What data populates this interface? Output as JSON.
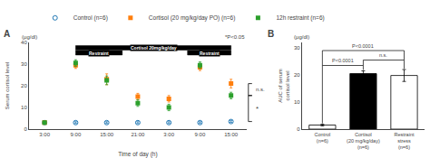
{
  "chart_data": [
    {
      "type": "scatter",
      "title": "A",
      "xlabel": "Time of day (h)",
      "ylabel": "Serum cortisol level",
      "yunits": "(μg/dl)",
      "categories": [
        "3:00",
        "9:00",
        "15:00",
        "21:00",
        "3:00",
        "9:00",
        "15:00"
      ],
      "series": [
        {
          "name": "Control (n=6)",
          "marker": "circle-open",
          "values": [
            3.0,
            3.0,
            3.0,
            3.0,
            3.0,
            3.0,
            3.5
          ],
          "errors": [
            0.4,
            0.4,
            0.4,
            0.4,
            0.4,
            0.4,
            0.4
          ]
        },
        {
          "name": "Cortisol (20 mg/kg/day PO) (n=6)",
          "marker": "square",
          "values": [
            3.0,
            29.5,
            23.0,
            15.0,
            14.0,
            28.5,
            21.0
          ],
          "errors": [
            0.4,
            1.5,
            2.5,
            1.5,
            1.5,
            1.5,
            2.0
          ]
        },
        {
          "name": "12h restraint (n=6)",
          "marker": "square",
          "values": [
            3.0,
            30.5,
            22.5,
            12.0,
            10.0,
            29.5,
            15.5
          ],
          "errors": [
            0.4,
            1.5,
            2.0,
            1.5,
            1.5,
            1.5,
            1.5
          ]
        }
      ],
      "ylim": [
        0,
        40
      ],
      "yticks": [
        0,
        10,
        20,
        30,
        40
      ],
      "grid": false,
      "legend": "top",
      "annotations": [
        {
          "text": "*P<0.05"
        },
        {
          "text": "Cortisol 20mg/kg/day",
          "x": [
            1,
            6
          ],
          "y": [
            36.5,
            38.5
          ]
        },
        {
          "text": "Restraint",
          "x": [
            1,
            2.5
          ],
          "y": [
            34.2,
            36.2
          ]
        },
        {
          "text": "Restraint",
          "x": [
            4.6,
            6
          ],
          "y": [
            34.2,
            36.2
          ]
        },
        {
          "text": "n.s.",
          "y": [
            15.5,
            21.0
          ]
        },
        {
          "text": "*",
          "y": [
            3.5,
            15.5
          ]
        }
      ]
    },
    {
      "type": "bar",
      "title": "B",
      "ylabel": "AUC of serum\ncortisol level",
      "yunits": "(μg/dl)",
      "categories": [
        "Control\n(n=6)",
        "Cortisol\n(20 mg/kg/day)\n(n=6)",
        "Restraint\nstress\n(n=6)"
      ],
      "values": [
        1.5,
        20.5,
        19.8
      ],
      "errors": [
        0.3,
        1.0,
        2.2
      ],
      "colors": [
        "white",
        "black",
        "white"
      ],
      "ylim": [
        0,
        32
      ],
      "yticks": [
        0,
        10,
        20,
        30
      ],
      "grid": false,
      "annotations": [
        {
          "text": "P<0.0001",
          "x": [
            0,
            1
          ],
          "y": 23.5
        },
        {
          "text": "n.s.",
          "x": [
            1,
            2
          ],
          "y": 25.5
        },
        {
          "text": "P<0.0001",
          "x": [
            0,
            2
          ],
          "y": 29.0
        }
      ]
    }
  ]
}
